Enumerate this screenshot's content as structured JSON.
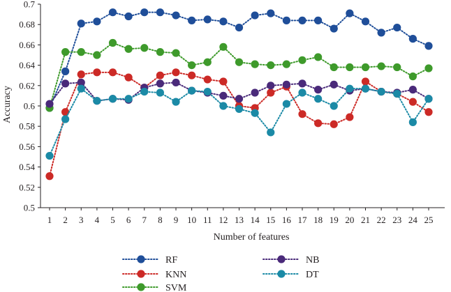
{
  "chart_data": {
    "type": "line",
    "xlabel": "Number of features",
    "ylabel": "Accuracy",
    "x": [
      1,
      2,
      3,
      4,
      5,
      6,
      7,
      8,
      9,
      10,
      11,
      12,
      13,
      14,
      15,
      16,
      17,
      18,
      19,
      20,
      21,
      22,
      23,
      24,
      25
    ],
    "ylim": [
      0.5,
      0.7
    ],
    "yticks": [
      "0.5",
      "0.52",
      "0.54",
      "0.56",
      "0.58",
      "0.6",
      "0.62",
      "0.64",
      "0.66",
      "0.68",
      "0.7"
    ],
    "grid": false,
    "legend_position": "bottom",
    "series": [
      {
        "name": "RF",
        "color": "#1f4e99",
        "values": [
          0.598,
          0.634,
          0.681,
          0.683,
          0.692,
          0.688,
          0.692,
          0.692,
          0.689,
          0.684,
          0.685,
          0.683,
          0.677,
          0.689,
          0.691,
          0.684,
          0.684,
          0.684,
          0.676,
          0.691,
          0.683,
          0.672,
          0.677,
          0.666,
          0.659
        ]
      },
      {
        "name": "KNN",
        "color": "#cc2a26",
        "values": [
          0.531,
          0.594,
          0.631,
          0.633,
          0.633,
          0.628,
          0.618,
          0.63,
          0.633,
          0.63,
          0.626,
          0.624,
          0.6,
          0.598,
          0.613,
          0.619,
          0.592,
          0.583,
          0.582,
          0.589,
          0.624,
          0.614,
          0.612,
          0.604,
          0.594
        ]
      },
      {
        "name": "SVM",
        "color": "#3e9a2b",
        "values": [
          0.598,
          0.653,
          0.653,
          0.65,
          0.662,
          0.656,
          0.657,
          0.653,
          0.652,
          0.64,
          0.643,
          0.658,
          0.643,
          0.641,
          0.64,
          0.641,
          0.645,
          0.648,
          0.638,
          0.638,
          0.638,
          0.639,
          0.638,
          0.629,
          0.637
        ]
      },
      {
        "name": "NB",
        "color": "#4a2a7a",
        "values": [
          0.602,
          0.622,
          0.623,
          0.605,
          0.607,
          0.606,
          0.618,
          0.622,
          0.623,
          0.615,
          0.613,
          0.61,
          0.607,
          0.613,
          0.62,
          0.621,
          0.622,
          0.616,
          0.621,
          0.615,
          0.617,
          0.614,
          0.613,
          0.616,
          0.607
        ]
      },
      {
        "name": "DT",
        "color": "#1b8aa6",
        "values": [
          0.551,
          0.587,
          0.617,
          0.605,
          0.607,
          0.607,
          0.614,
          0.613,
          0.604,
          0.615,
          0.614,
          0.6,
          0.597,
          0.593,
          0.574,
          0.602,
          0.613,
          0.607,
          0.6,
          0.617,
          0.617,
          0.614,
          0.612,
          0.584,
          0.607
        ]
      }
    ]
  }
}
